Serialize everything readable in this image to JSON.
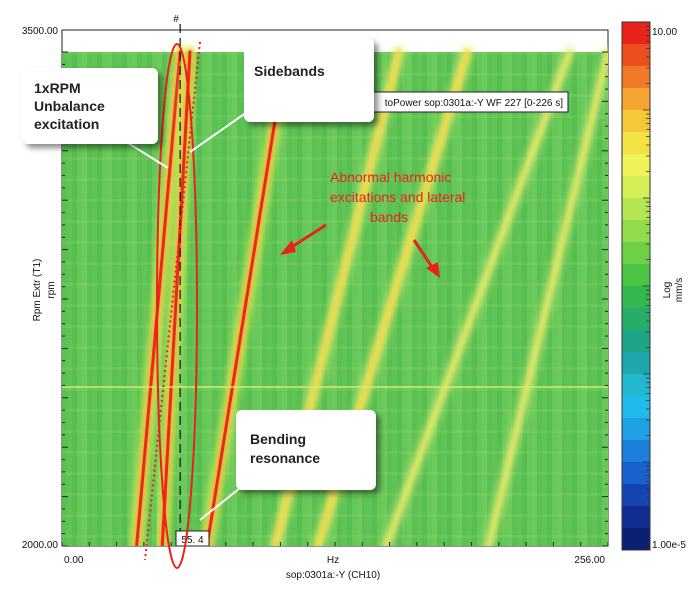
{
  "chart_data": {
    "type": "heatmap",
    "x_axis": {
      "min": 0,
      "max": 256,
      "min_label": "0.00",
      "max_label": "256.00",
      "unit_label": "Hz",
      "channel_label": "sop:0301a:-Y (CH10)"
    },
    "y_axis": {
      "min": 2000,
      "max": 3500,
      "min_label": "2000.00",
      "max_label": "3500.00",
      "label": "Rpm Extr (T1)",
      "unit": "rpm"
    },
    "cursor_value": "55.4",
    "cursor_value_display": "55.  4",
    "cursor_marker": "#",
    "legend": {
      "max_label": "10.00",
      "min_label": "1.00e-5",
      "scale": "Log",
      "unit": "mm/s",
      "colors": [
        "#e8231b",
        "#ec4e20",
        "#f07a2a",
        "#f3a431",
        "#f4c838",
        "#f2e342",
        "#eef35a",
        "#d4ef55",
        "#b4e552",
        "#92db4c",
        "#6fd048",
        "#4bc444",
        "#32b84f",
        "#27ad6a",
        "#1fa489",
        "#1ea8ab",
        "#21b7cf",
        "#1fbbeb",
        "#1e9fe6",
        "#1c7fdb",
        "#1a61cc",
        "#1545b3",
        "#102d94",
        "#0c1f73"
      ]
    },
    "waterfall_title": "toPower sop:0301a:-Y WF 227 [0-226 s]",
    "orders": [
      {
        "name": "1xRPM",
        "x_at_ymin": 35,
        "x_at_ymax": 55.4,
        "intensity": "high"
      },
      {
        "name": "sideband",
        "x_at_ymin": 47,
        "x_at_ymax": 60,
        "intensity": "high"
      },
      {
        "name": "harmonic",
        "x_at_ymin": 68,
        "x_at_ymax": 105,
        "intensity": "high"
      },
      {
        "name": "harmonic",
        "x_at_ymin": 100,
        "x_at_ymax": 158,
        "intensity": "medium"
      },
      {
        "name": "harmonic",
        "x_at_ymin": 120,
        "x_at_ymax": 190,
        "intensity": "medium"
      },
      {
        "name": "harmonic",
        "x_at_ymin": 152,
        "x_at_ymax": 238,
        "intensity": "low"
      },
      {
        "name": "harmonic",
        "x_at_ymin": 200,
        "x_at_ymax": 256,
        "intensity": "low"
      }
    ]
  },
  "annotations": {
    "unbalance_label": [
      "1xRPM",
      "Unbalance",
      "excitation"
    ],
    "sidebands_label": "Sidebands",
    "harmonics_label": [
      "Abnormal harmonic",
      "excitations and lateral",
      "bands"
    ],
    "bending_label": [
      "Bending",
      "resonance"
    ]
  },
  "colors": {
    "plot_background": "#5fc456",
    "callout_fill": "#ffffff",
    "annotation_red": "#e8231b"
  }
}
